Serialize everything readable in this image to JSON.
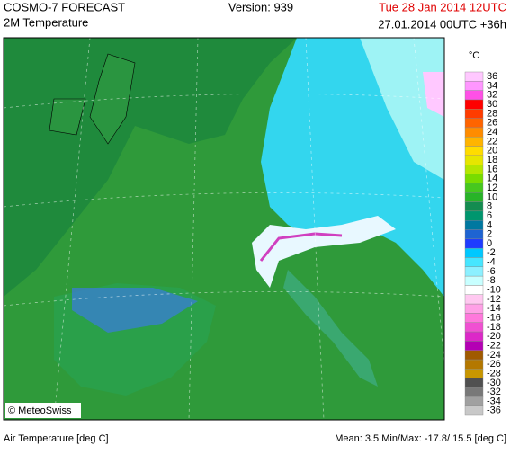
{
  "header": {
    "title": "COSMO-7 FORECAST",
    "subtitle": "2M Temperature",
    "version": "Version: 939",
    "valid_time": "Tue 28 Jan 2014 12UTC",
    "run_time": "27.01.2014 00UTC +36h"
  },
  "legend": {
    "unit": "°C",
    "labels": [
      "36",
      "34",
      "32",
      "30",
      "28",
      "26",
      "24",
      "22",
      "20",
      "18",
      "16",
      "14",
      "12",
      "10",
      "8",
      "6",
      "4",
      "2",
      "0",
      "-2",
      "-4",
      "-6",
      "-8",
      "-10",
      "-12",
      "-14",
      "-16",
      "-18",
      "-20",
      "-22",
      "-24",
      "-26",
      "-28",
      "-30",
      "-32",
      "-34",
      "-36"
    ],
    "colors": [
      "#ffc8ff",
      "#ff96ff",
      "#ff50e6",
      "#ff0000",
      "#ff3c00",
      "#ff6400",
      "#ff8c00",
      "#ffb400",
      "#ffdc00",
      "#e6e600",
      "#b4e600",
      "#78dc00",
      "#46c81e",
      "#28b428",
      "#148c50",
      "#00966e",
      "#0078a0",
      "#1e64d2",
      "#1e3cff",
      "#00c8ff",
      "#46e6ff",
      "#8cf0ff",
      "#c8ffff",
      "#ffffff",
      "#ffc8f0",
      "#ffa0e6",
      "#ff78dc",
      "#f050d2",
      "#dc28c8",
      "#b400b4",
      "#a05a00",
      "#b47800",
      "#c89600",
      "#505050",
      "#787878",
      "#a0a0a0",
      "#c8c8c8"
    ]
  },
  "footer": {
    "parameter": "Air Temperature [deg C]",
    "stats": "Mean:   3.5 Min/Max: -17.8/  15.5 [deg C]"
  },
  "copyright": "© MeteoSwiss"
}
